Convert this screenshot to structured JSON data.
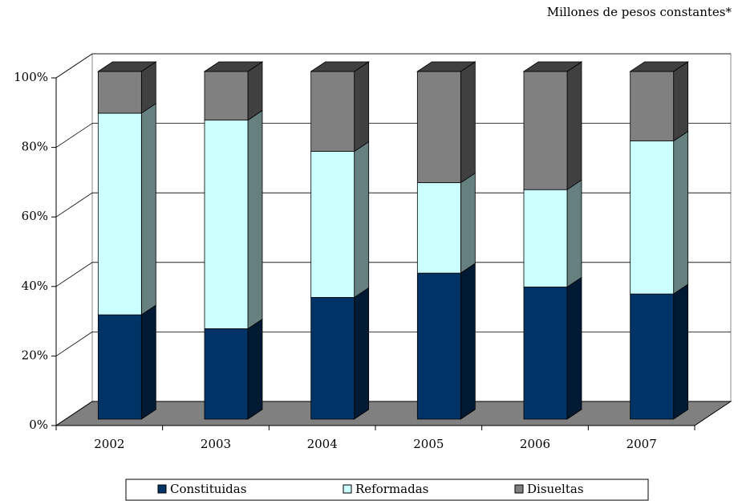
{
  "chart_data": {
    "type": "bar",
    "stacked": true,
    "subtitle": "Millones de pesos constantes*",
    "categories": [
      "2002",
      "2003",
      "2004",
      "2005",
      "2006",
      "2007"
    ],
    "series": [
      {
        "name": "Constituidas",
        "color": "#003366",
        "values": [
          30,
          26,
          35,
          42,
          38,
          36
        ]
      },
      {
        "name": "Reformadas",
        "color": "#ccffff",
        "values": [
          58,
          60,
          42,
          26,
          28,
          44
        ]
      },
      {
        "name": "Disueltas",
        "color": "#808080",
        "values": [
          12,
          14,
          23,
          32,
          34,
          20
        ]
      }
    ],
    "ylim": [
      0,
      100
    ],
    "yticks": [
      {
        "value": 0,
        "label": "0%"
      },
      {
        "value": 20,
        "label": "20%"
      },
      {
        "value": 40,
        "label": "40%"
      },
      {
        "value": 60,
        "label": "60%"
      },
      {
        "value": 80,
        "label": "80%"
      },
      {
        "value": 100,
        "label": "100%"
      }
    ],
    "grid": true
  }
}
